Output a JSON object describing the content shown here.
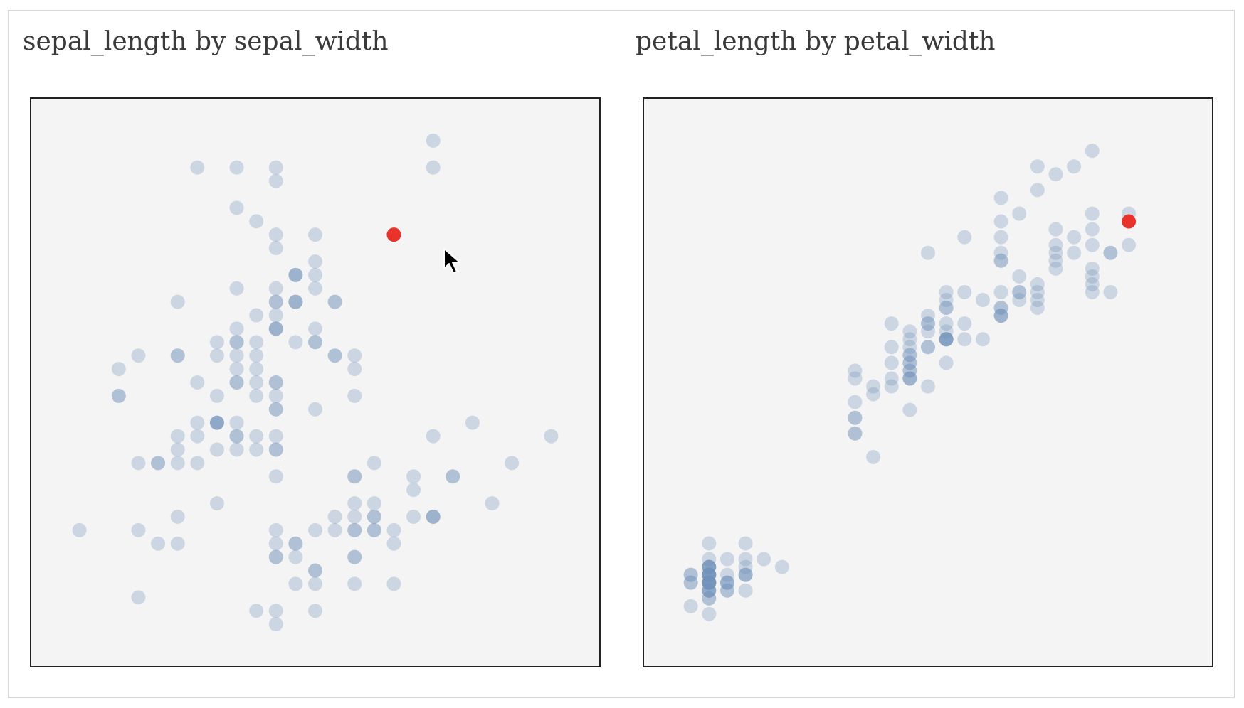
{
  "colors": {
    "background": "#ffffff",
    "plot_bg": "#f4f4f4",
    "point": "#7291b8",
    "highlight": "#e8322a"
  },
  "cursor_icon": "mouse-pointer-icon",
  "chart_data": [
    {
      "type": "scatter",
      "title": "sepal_length by sepal_width",
      "xlabel": "sepal_width",
      "ylabel": "sepal_length",
      "xlim": [
        1.9,
        4.5
      ],
      "ylim": [
        4.2,
        8.0
      ],
      "grid": false,
      "point_opacity": 0.3,
      "points": [
        [
          3.5,
          5.1
        ],
        [
          3.0,
          4.9
        ],
        [
          3.2,
          4.7
        ],
        [
          3.1,
          4.6
        ],
        [
          3.6,
          5.0
        ],
        [
          3.9,
          5.4
        ],
        [
          3.4,
          4.6
        ],
        [
          3.4,
          5.0
        ],
        [
          2.9,
          4.4
        ],
        [
          3.1,
          4.9
        ],
        [
          3.7,
          5.4
        ],
        [
          3.4,
          4.8
        ],
        [
          3.0,
          4.8
        ],
        [
          3.0,
          4.3
        ],
        [
          4.0,
          5.8
        ],
        [
          4.4,
          5.7
        ],
        [
          3.9,
          5.4
        ],
        [
          3.5,
          5.1
        ],
        [
          3.8,
          5.7
        ],
        [
          3.8,
          5.1
        ],
        [
          3.4,
          5.4
        ],
        [
          3.7,
          5.1
        ],
        [
          3.6,
          4.6
        ],
        [
          3.3,
          5.1
        ],
        [
          3.4,
          4.8
        ],
        [
          3.0,
          5.0
        ],
        [
          3.4,
          5.0
        ],
        [
          3.5,
          5.2
        ],
        [
          3.4,
          5.2
        ],
        [
          3.2,
          4.7
        ],
        [
          3.1,
          4.8
        ],
        [
          3.4,
          5.4
        ],
        [
          4.1,
          5.2
        ],
        [
          4.2,
          5.5
        ],
        [
          3.1,
          4.9
        ],
        [
          3.2,
          5.0
        ],
        [
          3.5,
          5.5
        ],
        [
          3.6,
          4.9
        ],
        [
          3.0,
          4.4
        ],
        [
          3.4,
          5.1
        ],
        [
          3.5,
          5.0
        ],
        [
          2.3,
          4.5
        ],
        [
          3.2,
          4.4
        ],
        [
          3.5,
          5.0
        ],
        [
          3.8,
          5.1
        ],
        [
          3.0,
          4.8
        ],
        [
          3.8,
          5.1
        ],
        [
          3.2,
          4.6
        ],
        [
          3.7,
          5.3
        ],
        [
          3.3,
          5.0
        ],
        [
          3.2,
          7.0
        ],
        [
          3.2,
          6.4
        ],
        [
          3.1,
          6.9
        ],
        [
          2.3,
          5.5
        ],
        [
          2.8,
          6.5
        ],
        [
          2.8,
          5.7
        ],
        [
          3.3,
          6.3
        ],
        [
          2.4,
          4.9
        ],
        [
          2.9,
          6.6
        ],
        [
          2.7,
          5.2
        ],
        [
          2.0,
          5.0
        ],
        [
          3.0,
          5.9
        ],
        [
          2.2,
          6.0
        ],
        [
          2.9,
          6.1
        ],
        [
          2.9,
          5.6
        ],
        [
          3.1,
          6.7
        ],
        [
          3.0,
          5.6
        ],
        [
          2.7,
          5.8
        ],
        [
          2.2,
          6.2
        ],
        [
          2.5,
          5.6
        ],
        [
          3.2,
          5.9
        ],
        [
          2.8,
          6.1
        ],
        [
          2.5,
          6.3
        ],
        [
          2.8,
          6.1
        ],
        [
          2.9,
          6.4
        ],
        [
          3.0,
          6.6
        ],
        [
          2.8,
          6.8
        ],
        [
          3.0,
          6.7
        ],
        [
          2.9,
          6.0
        ],
        [
          2.6,
          5.7
        ],
        [
          2.4,
          5.5
        ],
        [
          2.4,
          5.5
        ],
        [
          2.7,
          5.8
        ],
        [
          2.7,
          6.0
        ],
        [
          3.0,
          5.4
        ],
        [
          3.4,
          6.0
        ],
        [
          3.1,
          6.7
        ],
        [
          2.3,
          6.3
        ],
        [
          3.0,
          5.6
        ],
        [
          2.5,
          5.5
        ],
        [
          2.6,
          5.5
        ],
        [
          3.0,
          6.1
        ],
        [
          2.6,
          5.8
        ],
        [
          2.3,
          5.0
        ],
        [
          2.7,
          5.6
        ],
        [
          3.0,
          5.7
        ],
        [
          2.9,
          5.7
        ],
        [
          2.9,
          6.2
        ],
        [
          2.5,
          5.1
        ],
        [
          2.8,
          5.7
        ],
        [
          3.3,
          6.3
        ],
        [
          2.7,
          5.8
        ],
        [
          3.0,
          7.1
        ],
        [
          2.9,
          6.3
        ],
        [
          3.0,
          6.5
        ],
        [
          3.0,
          7.6
        ],
        [
          2.5,
          4.9
        ],
        [
          2.9,
          7.3
        ],
        [
          2.5,
          6.7
        ],
        [
          3.6,
          7.2
        ],
        [
          3.2,
          6.5
        ],
        [
          2.7,
          6.4
        ],
        [
          3.0,
          6.8
        ],
        [
          2.5,
          5.7
        ],
        [
          2.8,
          5.8
        ],
        [
          3.2,
          6.4
        ],
        [
          3.0,
          6.5
        ],
        [
          3.8,
          7.7
        ],
        [
          2.6,
          7.7
        ],
        [
          2.2,
          6.0
        ],
        [
          3.2,
          6.9
        ],
        [
          2.8,
          5.6
        ],
        [
          2.8,
          7.7
        ],
        [
          2.7,
          6.3
        ],
        [
          3.3,
          6.7
        ],
        [
          3.2,
          7.2
        ],
        [
          2.8,
          6.2
        ],
        [
          3.0,
          6.1
        ],
        [
          2.8,
          6.4
        ],
        [
          3.0,
          7.2
        ],
        [
          2.8,
          7.4
        ],
        [
          3.8,
          7.9
        ],
        [
          2.8,
          6.4
        ],
        [
          2.8,
          6.3
        ],
        [
          2.6,
          6.1
        ],
        [
          3.0,
          7.7
        ],
        [
          3.4,
          6.3
        ],
        [
          3.1,
          6.4
        ],
        [
          3.0,
          6.0
        ],
        [
          3.1,
          6.9
        ],
        [
          3.1,
          6.7
        ],
        [
          3.1,
          6.9
        ],
        [
          2.7,
          5.8
        ],
        [
          3.2,
          6.8
        ],
        [
          3.3,
          6.7
        ],
        [
          3.0,
          6.7
        ],
        [
          2.5,
          6.3
        ],
        [
          3.0,
          6.5
        ],
        [
          3.4,
          6.2
        ],
        [
          3.0,
          5.9
        ]
      ],
      "highlight": [
        3.6,
        7.2
      ]
    },
    {
      "type": "scatter",
      "title": "petal_length by petal_width",
      "xlabel": "petal_width",
      "ylabel": "petal_length",
      "xlim": [
        0.0,
        2.8
      ],
      "ylim": [
        0.7,
        7.2
      ],
      "grid": false,
      "point_opacity": 0.3,
      "points": [
        [
          0.2,
          1.4
        ],
        [
          0.2,
          1.4
        ],
        [
          0.2,
          1.3
        ],
        [
          0.2,
          1.5
        ],
        [
          0.2,
          1.4
        ],
        [
          0.4,
          1.7
        ],
        [
          0.3,
          1.4
        ],
        [
          0.2,
          1.5
        ],
        [
          0.2,
          1.4
        ],
        [
          0.1,
          1.5
        ],
        [
          0.2,
          1.5
        ],
        [
          0.2,
          1.6
        ],
        [
          0.1,
          1.4
        ],
        [
          0.1,
          1.1
        ],
        [
          0.2,
          1.2
        ],
        [
          0.4,
          1.5
        ],
        [
          0.4,
          1.3
        ],
        [
          0.3,
          1.4
        ],
        [
          0.3,
          1.7
        ],
        [
          0.3,
          1.5
        ],
        [
          0.2,
          1.7
        ],
        [
          0.4,
          1.5
        ],
        [
          0.2,
          1.0
        ],
        [
          0.5,
          1.7
        ],
        [
          0.2,
          1.9
        ],
        [
          0.2,
          1.6
        ],
        [
          0.4,
          1.6
        ],
        [
          0.2,
          1.5
        ],
        [
          0.2,
          1.4
        ],
        [
          0.2,
          1.6
        ],
        [
          0.2,
          1.6
        ],
        [
          0.4,
          1.5
        ],
        [
          0.1,
          1.5
        ],
        [
          0.2,
          1.4
        ],
        [
          0.2,
          1.5
        ],
        [
          0.2,
          1.2
        ],
        [
          0.2,
          1.3
        ],
        [
          0.1,
          1.4
        ],
        [
          0.2,
          1.3
        ],
        [
          0.2,
          1.5
        ],
        [
          0.3,
          1.3
        ],
        [
          0.3,
          1.3
        ],
        [
          0.2,
          1.3
        ],
        [
          0.6,
          1.6
        ],
        [
          0.4,
          1.9
        ],
        [
          0.3,
          1.4
        ],
        [
          0.2,
          1.6
        ],
        [
          0.2,
          1.4
        ],
        [
          0.2,
          1.5
        ],
        [
          0.2,
          1.4
        ],
        [
          1.4,
          4.7
        ],
        [
          1.5,
          4.5
        ],
        [
          1.5,
          4.9
        ],
        [
          1.3,
          4.0
        ],
        [
          1.5,
          4.6
        ],
        [
          1.3,
          4.5
        ],
        [
          1.6,
          4.7
        ],
        [
          1.0,
          3.3
        ],
        [
          1.3,
          4.6
        ],
        [
          1.4,
          3.9
        ],
        [
          1.0,
          3.5
        ],
        [
          1.5,
          4.2
        ],
        [
          1.0,
          4.0
        ],
        [
          1.4,
          4.7
        ],
        [
          1.3,
          3.6
        ],
        [
          1.4,
          4.4
        ],
        [
          1.5,
          4.5
        ],
        [
          1.0,
          4.1
        ],
        [
          1.5,
          4.5
        ],
        [
          1.1,
          3.9
        ],
        [
          1.8,
          4.8
        ],
        [
          1.3,
          4.0
        ],
        [
          1.5,
          4.9
        ],
        [
          1.2,
          4.7
        ],
        [
          1.3,
          4.3
        ],
        [
          1.4,
          4.4
        ],
        [
          1.4,
          4.8
        ],
        [
          1.7,
          5.0
        ],
        [
          1.5,
          4.5
        ],
        [
          1.0,
          3.5
        ],
        [
          1.1,
          3.8
        ],
        [
          1.0,
          3.7
        ],
        [
          1.2,
          3.9
        ],
        [
          1.6,
          5.1
        ],
        [
          1.5,
          4.5
        ],
        [
          1.6,
          4.5
        ],
        [
          1.5,
          4.7
        ],
        [
          1.3,
          4.4
        ],
        [
          1.3,
          4.1
        ],
        [
          1.3,
          4.0
        ],
        [
          1.2,
          4.4
        ],
        [
          1.4,
          4.6
        ],
        [
          1.2,
          4.0
        ],
        [
          1.0,
          3.3
        ],
        [
          1.3,
          4.2
        ],
        [
          1.2,
          4.2
        ],
        [
          1.3,
          4.2
        ],
        [
          1.3,
          4.3
        ],
        [
          1.1,
          3.0
        ],
        [
          1.3,
          4.1
        ],
        [
          2.5,
          6.0
        ],
        [
          1.9,
          5.1
        ],
        [
          2.1,
          5.9
        ],
        [
          1.8,
          5.6
        ],
        [
          2.2,
          5.8
        ],
        [
          2.1,
          6.6
        ],
        [
          1.7,
          4.5
        ],
        [
          1.8,
          6.3
        ],
        [
          1.8,
          5.8
        ],
        [
          2.5,
          6.1
        ],
        [
          2.0,
          5.1
        ],
        [
          1.9,
          5.3
        ],
        [
          2.1,
          5.5
        ],
        [
          2.0,
          5.0
        ],
        [
          2.4,
          5.1
        ],
        [
          2.3,
          5.3
        ],
        [
          1.8,
          5.5
        ],
        [
          2.2,
          6.7
        ],
        [
          2.3,
          6.9
        ],
        [
          1.5,
          5.0
        ],
        [
          2.3,
          5.7
        ],
        [
          2.0,
          4.9
        ],
        [
          2.0,
          6.7
        ],
        [
          1.8,
          4.9
        ],
        [
          2.1,
          5.7
        ],
        [
          1.8,
          6.0
        ],
        [
          1.8,
          4.8
        ],
        [
          1.8,
          4.9
        ],
        [
          2.1,
          5.6
        ],
        [
          1.6,
          5.8
        ],
        [
          1.9,
          6.1
        ],
        [
          2.0,
          6.4
        ],
        [
          2.2,
          5.6
        ],
        [
          1.5,
          5.1
        ],
        [
          1.4,
          5.6
        ],
        [
          2.3,
          6.1
        ],
        [
          2.4,
          5.6
        ],
        [
          1.8,
          5.5
        ],
        [
          1.8,
          4.8
        ],
        [
          2.1,
          5.4
        ],
        [
          2.4,
          5.6
        ],
        [
          2.3,
          5.1
        ],
        [
          1.9,
          5.1
        ],
        [
          2.3,
          5.9
        ],
        [
          2.5,
          5.7
        ],
        [
          2.3,
          5.2
        ],
        [
          1.9,
          5.0
        ],
        [
          2.0,
          5.2
        ],
        [
          2.3,
          5.4
        ],
        [
          1.8,
          5.1
        ]
      ],
      "highlight": [
        2.5,
        6.0
      ]
    }
  ]
}
